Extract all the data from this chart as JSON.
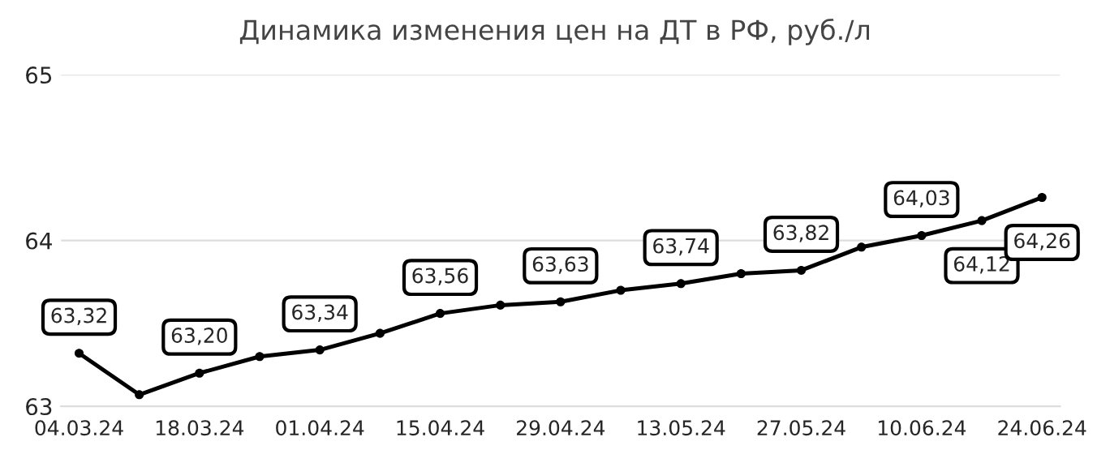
{
  "chart_data": {
    "type": "line",
    "title": "Динамика изменения цен на ДТ в РФ, руб./л",
    "categories": [
      "04.03.24",
      null,
      "18.03.24",
      null,
      "01.04.24",
      null,
      "15.04.24",
      null,
      "29.04.24",
      null,
      "13.05.24",
      null,
      "27.05.24",
      null,
      "10.06.24",
      null,
      "24.06.24"
    ],
    "series": [
      {
        "color": "#000000",
        "values": [
          63.32,
          63.07,
          63.2,
          63.3,
          63.34,
          63.44,
          63.56,
          63.61,
          63.63,
          63.7,
          63.74,
          63.8,
          63.82,
          63.96,
          64.03,
          64.12,
          64.26
        ],
        "value_labels": [
          "63,32",
          null,
          "63,20",
          null,
          "63,34",
          null,
          "63,56",
          null,
          "63,63",
          null,
          "63,74",
          null,
          "63,82",
          null,
          "64,03",
          "64,12",
          "64,26"
        ]
      }
    ],
    "ylim": [
      63,
      65
    ],
    "yticks": [
      63,
      64,
      65
    ],
    "grid": "y",
    "marker": "circle",
    "line_style": "solid",
    "legend": false
  }
}
